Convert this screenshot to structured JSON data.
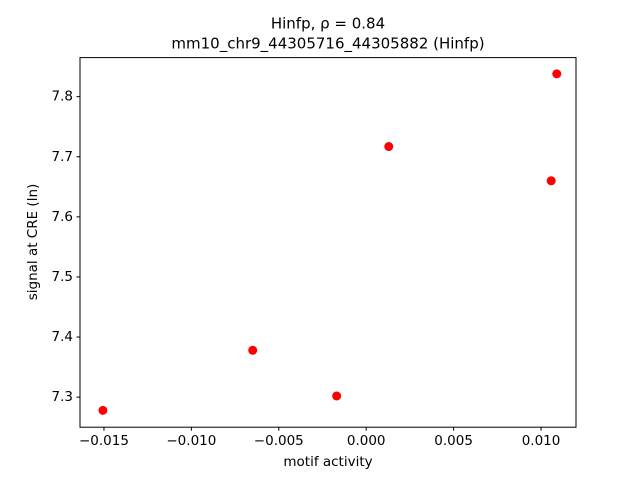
{
  "chart_data": {
    "type": "scatter",
    "title": "Hinfp, ρ = 0.84",
    "subtitle": "mm10_chr9_44305716_44305882 (Hinfp)",
    "x_label": "motif activity",
    "y_label": "signal at CRE (ln)",
    "color": "#ff0000",
    "x": [
      -0.01506,
      -0.00649,
      -0.00169,
      0.00129,
      0.01058,
      0.0109
    ],
    "values": [
      7.278,
      7.378,
      7.302,
      7.717,
      7.66,
      7.838
    ],
    "xlim": [
      -0.01637,
      0.012
    ],
    "ylim": [
      7.25,
      7.865
    ],
    "xticks": [
      {
        "value": -0.015,
        "label": "−0.015"
      },
      {
        "value": -0.01,
        "label": "−0.010"
      },
      {
        "value": -0.005,
        "label": "−0.005"
      },
      {
        "value": 0,
        "label": "0.000"
      },
      0.005,
      {
        "value": 0.01,
        "label": "0.010"
      }
    ],
    "yticks": [
      7.3,
      7.4,
      7.5,
      7.6,
      7.7,
      7.8
    ]
  }
}
